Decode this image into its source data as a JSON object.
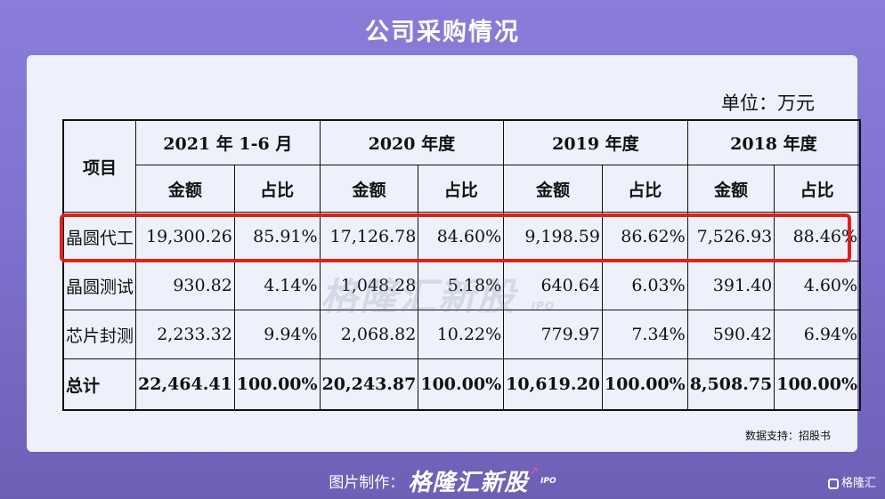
{
  "title": "公司采购情况",
  "unit": "单位：万元",
  "table": {
    "item_header": "项目",
    "periods": [
      "2021 年 1-6 月",
      "2020 年度",
      "2019 年度",
      "2018 年度"
    ],
    "amount_label": "金额",
    "ratio_label": "占比",
    "rows": [
      {
        "name": "晶圆代工",
        "values": [
          "19,300.26",
          "85.91%",
          "17,126.78",
          "84.60%",
          "9,198.59",
          "86.62%",
          "7,526.93",
          "88.46%"
        ]
      },
      {
        "name": "晶圆测试",
        "values": [
          "930.82",
          "4.14%",
          "1,048.28",
          "5.18%",
          "640.64",
          "6.03%",
          "391.40",
          "4.60%"
        ]
      },
      {
        "name": "芯片封测",
        "values": [
          "2,233.32",
          "9.94%",
          "2,068.82",
          "10.22%",
          "779.97",
          "7.34%",
          "590.42",
          "6.94%"
        ]
      }
    ],
    "total": {
      "name": "总计",
      "values": [
        "22,464.41",
        "100.00%",
        "20,243.87",
        "100.00%",
        "10,619.20",
        "100.00%",
        "8,508.75",
        "100.00%"
      ]
    }
  },
  "highlight_color": "#e0201a",
  "watermark": {
    "text": "格隆汇新股",
    "sub": "IPO"
  },
  "source": "数据支持：招股书",
  "footer": {
    "label": "图片制作：",
    "brand": "格隆汇新股",
    "sub": "IPO"
  },
  "corner_logo": "格隆汇"
}
